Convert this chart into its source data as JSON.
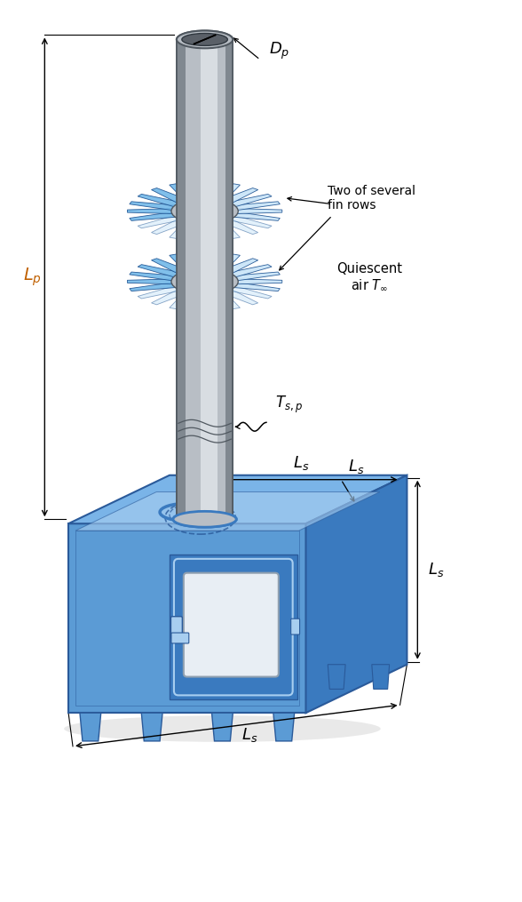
{
  "bg_color": "#ffffff",
  "stove_front": "#5b9bd5",
  "stove_top": "#7ab4e8",
  "stove_right": "#3a7abf",
  "stove_edge": "#2a5a9a",
  "stove_light": "#a8cef0",
  "pipe_light": "#d8dde2",
  "pipe_mid": "#b8bec5",
  "pipe_dark": "#808890",
  "pipe_edge": "#505860",
  "fin_light": "#c8e4f8",
  "fin_mid": "#72b8e8",
  "fin_dark": "#3a80c0",
  "fin_edge": "#1a5090",
  "win_color": "#c8d8e8",
  "win_grad": "#e8eef4",
  "dim_color": "#000000",
  "label_orange": "#c06000",
  "label_blue": "#2060a0",
  "label_black": "#000000",
  "labels": {
    "Dp": "$D_p$",
    "Lp": "$L_p$",
    "Ls": "$L_s$",
    "Tsp": "$T_{s,p}$",
    "two_fin": "Two of several\nfin rows",
    "quiescent": "Quiescent\nair $T_\\infty$"
  }
}
